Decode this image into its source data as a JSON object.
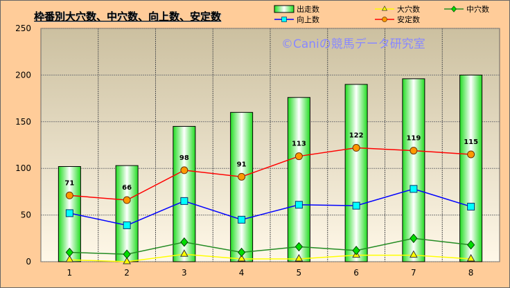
{
  "chart_data": {
    "type": "bar+line",
    "title": "枠番別大穴数、中穴数、向上数、安定数",
    "watermark": "©Caniの競馬データ研究室",
    "categories": [
      "1",
      "2",
      "3",
      "4",
      "5",
      "6",
      "7",
      "8"
    ],
    "ylim": [
      0,
      250
    ],
    "yticks": [
      0,
      50,
      100,
      150,
      200,
      250
    ],
    "grid": true,
    "legend": "top-right",
    "series": [
      {
        "name": "出走数",
        "type": "bar",
        "color": "#33ee33",
        "values": [
          102,
          103,
          145,
          160,
          176,
          190,
          196,
          200
        ]
      },
      {
        "name": "大穴数",
        "type": "line",
        "color": "#ffff00",
        "marker": "triangle",
        "values": [
          2,
          0,
          8,
          3,
          3,
          7,
          7,
          3
        ]
      },
      {
        "name": "中穴数",
        "type": "line",
        "color": "#228b22",
        "marker": "diamond",
        "values": [
          10,
          8,
          21,
          10,
          16,
          12,
          25,
          18
        ]
      },
      {
        "name": "向上数",
        "type": "line",
        "color": "#0000ff",
        "marker": "square",
        "values": [
          52,
          39,
          65,
          45,
          61,
          60,
          78,
          59
        ]
      },
      {
        "name": "安定数",
        "type": "line",
        "color": "#ff0000",
        "marker": "circle",
        "values": [
          71,
          66,
          98,
          91,
          113,
          122,
          119,
          115
        ],
        "labels": true
      }
    ]
  }
}
